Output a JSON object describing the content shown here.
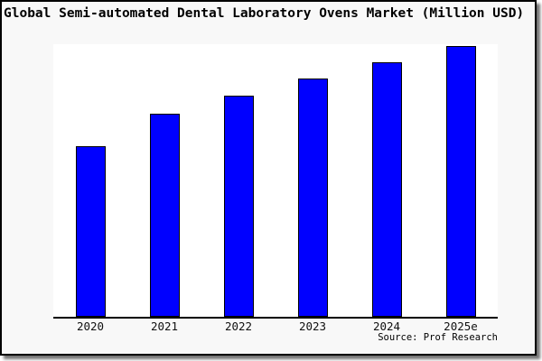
{
  "chart_data": {
    "type": "bar",
    "title": "Global Semi-automated Dental Laboratory Ovens Market (Million USD)",
    "categories": [
      "2020",
      "2021",
      "2022",
      "2023",
      "2024",
      "2025e"
    ],
    "values": [
      62.9,
      75.0,
      81.6,
      87.9,
      93.7,
      100
    ],
    "values_note": "no y-axis or data labels shown; values estimated from bar heights, indexed to 2025e = 100",
    "xlabel": "",
    "ylabel": "",
    "ylim": [
      0,
      100.5
    ],
    "grid": false,
    "legend": false,
    "bar_color": "#0000ff",
    "bar_edge_color": "#000000"
  },
  "source": {
    "text": "Source: Prof Research"
  },
  "colors": {
    "card_background": "#f8f8f8",
    "plot_background": "#ffffff",
    "bar_fill": "#0000ff",
    "border": "#000000"
  }
}
